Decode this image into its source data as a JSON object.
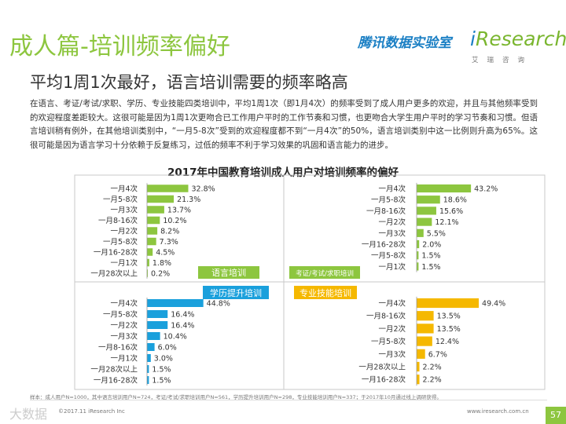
{
  "header": {
    "title": "成人篇-培训频率偏好",
    "subtitle": "平均1周1次最好，语言培训需要的频率略高",
    "body": "在语言、考证/考试/求职、学历、专业技能四类培训中，平均1周1次（即1月4次）的频率受到了成人用户更多的欢迎，并且与其他频率受到的欢迎程度差距较大。这很可能是因为1周1次更吻合已工作用户平时的工作节奏和习惯，也更吻合大学生用户平时的学习节奏和习惯。但语言培训稍有例外，在其他培训类别中，“一月5-8次”受到的欢迎程度都不到“一月4次”的50%，语言培训类别中这一比例则升高为65%。这很可能是因为语言学习十分依赖于反复练习，过低的频率不利于学习效果的巩固和语言能力的进步。",
    "tencent_logo": "腾讯数据实验室",
    "logo_i": "i",
    "logo_rest": "Research",
    "logo_cn": "艾瑞咨询"
  },
  "colors": {
    "green": "#8dc63f",
    "blue": "#1aa0dc",
    "yellow": "#f5b800",
    "grid": "#c8c8c8"
  },
  "chart_data": {
    "title": "2017年中国教育培训成人用户对培训频率的偏好",
    "type": "bar",
    "unit": "%",
    "panels": [
      {
        "name": "语言培训",
        "color": "green",
        "label_style": "filled",
        "categories": [
          "一月4次",
          "一月5-8次",
          "一月3次",
          "一月8-16次",
          "一月2次",
          "一月5-8次",
          "一月16-28次",
          "一月1次",
          "一月28次以上"
        ],
        "values": [
          32.8,
          21.3,
          13.7,
          10.2,
          8.2,
          7.3,
          4.5,
          1.8,
          0.2
        ],
        "labels": [
          "32.8%",
          "21.3%",
          "13.7%",
          "10.2%",
          "8.2%",
          "7.3%",
          "4.5%",
          "1.8%",
          "0.2%"
        ]
      },
      {
        "name": "考证/考试/求职培训",
        "color": "green",
        "label_style": "filled",
        "categories": [
          "一月4次",
          "一月5-8次",
          "一月8-16次",
          "一月2次",
          "一月3次",
          "一月16-28次",
          "一月5-8次",
          "一月1次"
        ],
        "values": [
          43.2,
          18.6,
          15.6,
          12.1,
          5.5,
          2.0,
          1.5,
          1.5
        ],
        "labels": [
          "43.2%",
          "18.6%",
          "15.6%",
          "12.1%",
          "5.5%",
          "2.0%",
          "1.5%",
          "1.5%"
        ]
      },
      {
        "name": "学历提升培训",
        "color": "blue",
        "label_style": "filled",
        "categories": [
          "一月4次",
          "一月5-8次",
          "一月2次",
          "一月3次",
          "一月8-16次",
          "一月1次",
          "一月28次以上",
          "一月16-28次"
        ],
        "values": [
          44.8,
          16.4,
          16.4,
          10.4,
          6.0,
          3.0,
          1.5,
          1.5
        ],
        "labels": [
          "44.8%",
          "16.4%",
          "16.4%",
          "10.4%",
          "6.0%",
          "3.0%",
          "1.5%",
          "1.5%"
        ]
      },
      {
        "name": "专业技能培训",
        "color": "yellow",
        "label_style": "filled",
        "categories": [
          "一月4次",
          "一月8-16次",
          "一月2次",
          "一月5-8次",
          "一月3次",
          "一月28次以上",
          "一月16-28次"
        ],
        "values": [
          49.4,
          13.5,
          13.5,
          12.4,
          6.7,
          2.2,
          2.2
        ],
        "labels": [
          "49.4%",
          "13.5%",
          "13.5%",
          "12.4%",
          "6.7%",
          "2.2%",
          "2.2%"
        ]
      }
    ]
  },
  "footer": {
    "note": "样本：成人用户N=1000，其中语言培训用户N=724，考证/考试/求职培训用户N=561，学历提升培训用户N=298，专业技能培训用户N=337；于2017年10月通过线上调研获得。",
    "copyright": "©2017.11 iResearch Inc",
    "watermark": "大数据",
    "site": "www.iresearch.com.cn",
    "page": "57"
  }
}
